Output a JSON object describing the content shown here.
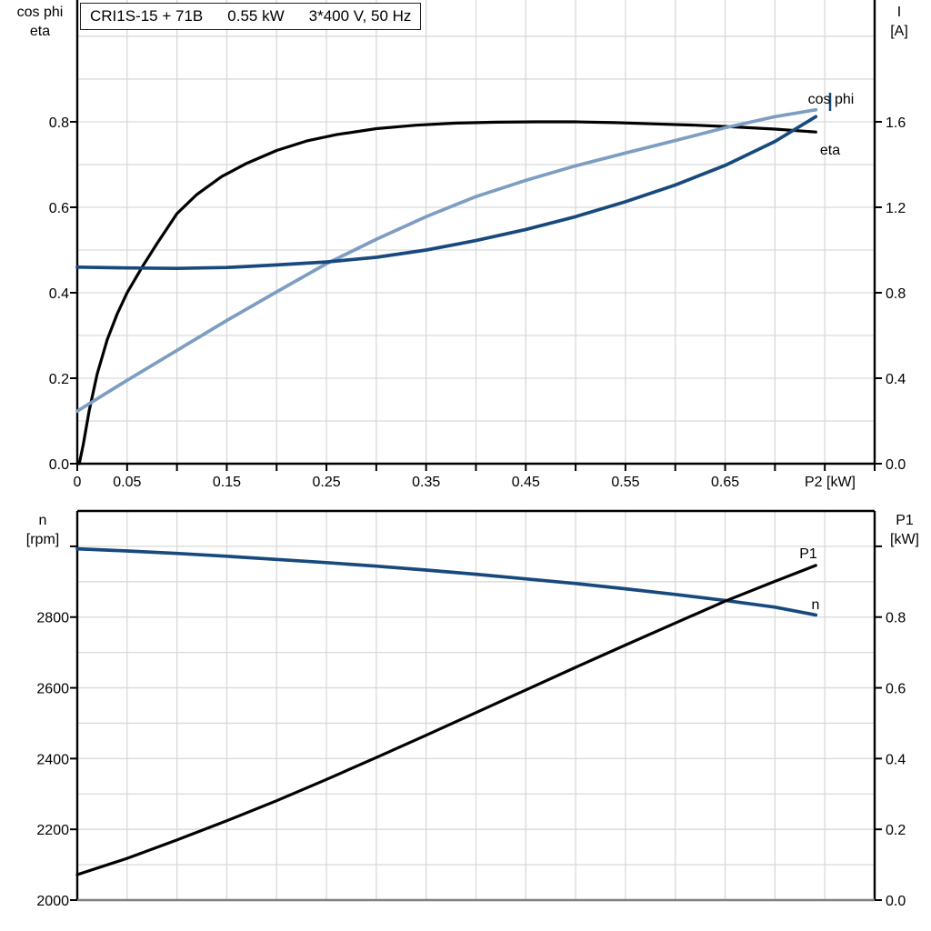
{
  "title": {
    "segments": [
      "CRI1S-15 + 71B",
      "0.55 kW",
      "3*400 V, 50 Hz"
    ]
  },
  "corner_labels": {
    "top_left": {
      "line1": "cos phi",
      "line2": "eta"
    },
    "top_right": {
      "line1": "I",
      "line2": "[A]"
    },
    "bottom_left": {
      "line1": "n",
      "line2": "[rpm]"
    },
    "bottom_right": {
      "line1": "P1",
      "line2": "[kW]"
    }
  },
  "colors": {
    "black": "#000000",
    "dark_blue": "#17497d",
    "light_blue": "#7d9dc2",
    "grid": "#d9d9d9",
    "axis_gray": "#808080"
  },
  "chart_data": [
    {
      "type": "line",
      "title": "CRI1S-15 + 71B  0.55 kW  3*400 V, 50 Hz",
      "x_axis": {
        "label": "P2 [kW]",
        "range": [
          0,
          0.8
        ],
        "grid_step": 0.05,
        "show_ticks": true,
        "tick_step": 0.05,
        "labels": [
          [
            "0",
            0
          ],
          [
            "0.05",
            0.05
          ],
          [
            "0.15",
            0.15
          ],
          [
            "0.25",
            0.25
          ],
          [
            "0.35",
            0.35
          ],
          [
            "0.45",
            0.45
          ],
          [
            "0.55",
            0.55
          ],
          [
            "0.65",
            0.65
          ]
        ]
      },
      "left_axis": {
        "label": "cos phi / eta",
        "range": [
          0,
          1.085
        ],
        "grid_step": 0.1,
        "tick_marks": [
          0,
          0.2,
          0.4,
          0.6,
          0.8
        ],
        "labels": [
          [
            "0.0",
            0
          ],
          [
            "0.2",
            0.2
          ],
          [
            "0.4",
            0.4
          ],
          [
            "0.6",
            0.6
          ],
          [
            "0.8",
            0.8
          ]
        ]
      },
      "right_axis": {
        "label": "I [A]",
        "range": [
          0,
          2.17
        ],
        "tick_marks": [
          0,
          0.4,
          0.8,
          1.2,
          1.6
        ],
        "labels": [
          [
            "0.0",
            0
          ],
          [
            "0.4",
            0.4
          ],
          [
            "0.8",
            0.8
          ],
          [
            "1.2",
            1.2
          ],
          [
            "1.6",
            1.6
          ]
        ]
      },
      "series": [
        {
          "name": "eta",
          "axis": "left",
          "color": "#000000",
          "show_label": true,
          "points": [
            [
              0.002,
              0
            ],
            [
              0.006,
              0.045
            ],
            [
              0.012,
              0.125
            ],
            [
              0.02,
              0.21
            ],
            [
              0.03,
              0.29
            ],
            [
              0.04,
              0.35
            ],
            [
              0.05,
              0.4
            ],
            [
              0.065,
              0.46
            ],
            [
              0.08,
              0.515
            ],
            [
              0.1,
              0.585
            ],
            [
              0.12,
              0.63
            ],
            [
              0.145,
              0.672
            ],
            [
              0.17,
              0.703
            ],
            [
              0.2,
              0.733
            ],
            [
              0.23,
              0.755
            ],
            [
              0.26,
              0.77
            ],
            [
              0.3,
              0.784
            ],
            [
              0.34,
              0.792
            ],
            [
              0.38,
              0.797
            ],
            [
              0.42,
              0.799
            ],
            [
              0.46,
              0.8
            ],
            [
              0.5,
              0.8
            ],
            [
              0.54,
              0.798
            ],
            [
              0.58,
              0.795
            ],
            [
              0.62,
              0.792
            ],
            [
              0.66,
              0.788
            ],
            [
              0.7,
              0.783
            ],
            [
              0.741,
              0.776
            ]
          ]
        },
        {
          "name": "cos phi",
          "axis": "left",
          "color": "#7d9dc2",
          "show_label": true,
          "points": [
            [
              0,
              0.123
            ],
            [
              0.05,
              0.195
            ],
            [
              0.1,
              0.265
            ],
            [
              0.15,
              0.335
            ],
            [
              0.2,
              0.402
            ],
            [
              0.25,
              0.468
            ],
            [
              0.3,
              0.525
            ],
            [
              0.35,
              0.578
            ],
            [
              0.4,
              0.625
            ],
            [
              0.45,
              0.663
            ],
            [
              0.5,
              0.697
            ],
            [
              0.55,
              0.727
            ],
            [
              0.6,
              0.756
            ],
            [
              0.65,
              0.786
            ],
            [
              0.7,
              0.812
            ],
            [
              0.741,
              0.828
            ]
          ]
        },
        {
          "name": "I",
          "axis": "right",
          "color": "#17497d",
          "show_label": false,
          "points": [
            [
              0,
              0.92
            ],
            [
              0.05,
              0.916
            ],
            [
              0.1,
              0.914
            ],
            [
              0.15,
              0.918
            ],
            [
              0.2,
              0.93
            ],
            [
              0.25,
              0.944
            ],
            [
              0.3,
              0.966
            ],
            [
              0.35,
              1.0
            ],
            [
              0.4,
              1.044
            ],
            [
              0.45,
              1.096
            ],
            [
              0.5,
              1.156
            ],
            [
              0.55,
              1.226
            ],
            [
              0.6,
              1.304
            ],
            [
              0.65,
              1.396
            ],
            [
              0.7,
              1.508
            ],
            [
              0.741,
              1.624
            ]
          ]
        }
      ]
    },
    {
      "type": "line",
      "title": "Speed and input power vs P2",
      "x_axis": {
        "label": "",
        "range": [
          0,
          0.8
        ],
        "grid_step": 0.05,
        "show_ticks": false,
        "labels": []
      },
      "left_axis": {
        "label": "n [rpm]",
        "range": [
          2000,
          3100
        ],
        "grid_step": 100,
        "tick_marks": [
          2000,
          2200,
          2400,
          2600,
          2800,
          3000
        ],
        "labels": [
          [
            "2000",
            2000
          ],
          [
            "2200",
            2200
          ],
          [
            "2400",
            2400
          ],
          [
            "2600",
            2600
          ],
          [
            "2800",
            2800
          ]
        ]
      },
      "right_axis": {
        "label": "P1 [kW]",
        "range": [
          0,
          1.1
        ],
        "tick_marks": [
          0,
          0.2,
          0.4,
          0.6,
          0.8,
          1.0
        ],
        "labels": [
          [
            "0.0",
            0
          ],
          [
            "0.2",
            0.2
          ],
          [
            "0.4",
            0.4
          ],
          [
            "0.6",
            0.6
          ],
          [
            "0.8",
            0.8
          ]
        ]
      },
      "series": [
        {
          "name": "n",
          "axis": "left",
          "color": "#17497d",
          "show_label": true,
          "points": [
            [
              0,
              2993
            ],
            [
              0.05,
              2987
            ],
            [
              0.1,
              2980
            ],
            [
              0.15,
              2972
            ],
            [
              0.2,
              2963
            ],
            [
              0.25,
              2954
            ],
            [
              0.3,
              2944
            ],
            [
              0.35,
              2933
            ],
            [
              0.4,
              2921
            ],
            [
              0.45,
              2908
            ],
            [
              0.5,
              2895
            ],
            [
              0.55,
              2880
            ],
            [
              0.6,
              2864
            ],
            [
              0.65,
              2847
            ],
            [
              0.7,
              2828
            ],
            [
              0.741,
              2806
            ]
          ]
        },
        {
          "name": "P1",
          "axis": "left_kw_right",
          "color": "#000000",
          "show_label": true,
          "points": [
            [
              0,
              0.072
            ],
            [
              0.05,
              0.118
            ],
            [
              0.1,
              0.17
            ],
            [
              0.15,
              0.224
            ],
            [
              0.2,
              0.281
            ],
            [
              0.25,
              0.341
            ],
            [
              0.3,
              0.403
            ],
            [
              0.35,
              0.466
            ],
            [
              0.4,
              0.53
            ],
            [
              0.45,
              0.594
            ],
            [
              0.5,
              0.658
            ],
            [
              0.55,
              0.721
            ],
            [
              0.6,
              0.783
            ],
            [
              0.65,
              0.845
            ],
            [
              0.7,
              0.901
            ],
            [
              0.741,
              0.946
            ]
          ]
        }
      ]
    }
  ]
}
